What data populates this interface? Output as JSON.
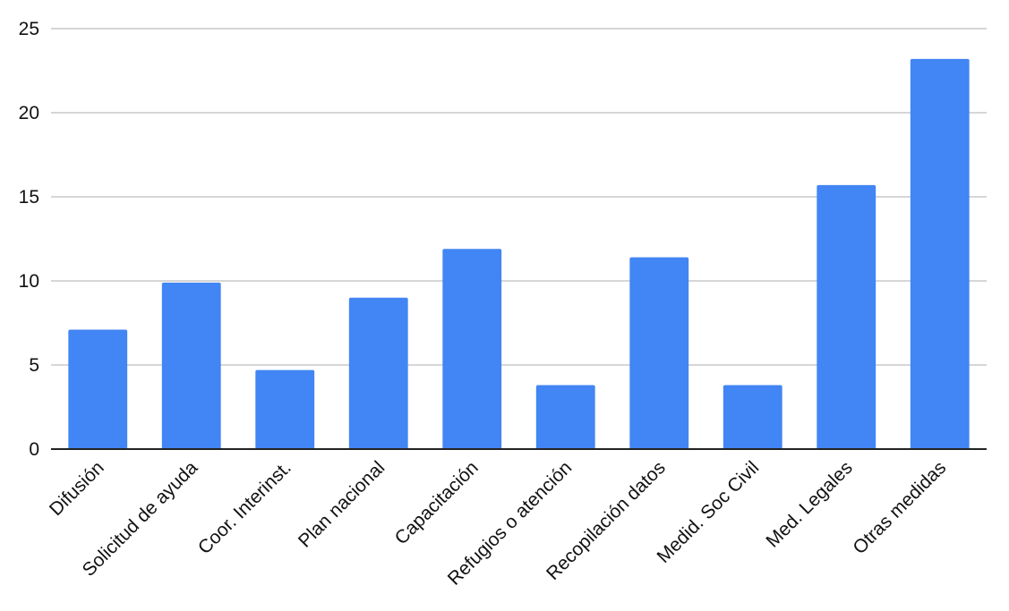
{
  "chart_data": {
    "type": "bar",
    "categories": [
      "Difusión",
      "Solicitud de ayuda",
      "Coor. Interinst.",
      "Plan nacional",
      "Capacitación",
      "Refugios o atención",
      "Recopilación datos",
      "Medid. Soc Civil",
      "Med. Legales",
      "Otras medidas"
    ],
    "values": [
      7.1,
      9.9,
      4.7,
      9.0,
      11.9,
      3.8,
      11.4,
      3.8,
      15.7,
      23.2
    ],
    "title": "",
    "xlabel": "",
    "ylabel": "",
    "ylim": [
      0,
      25
    ],
    "yticks": [
      0,
      5,
      10,
      15,
      20,
      25
    ],
    "ytick_labels": [
      "0",
      "5",
      "10",
      "15",
      "20",
      "25"
    ],
    "grid": true,
    "legend": "none",
    "colors": {
      "bar": "#4285F4",
      "grid": "#c8c8c8",
      "axis": "#222222"
    }
  }
}
